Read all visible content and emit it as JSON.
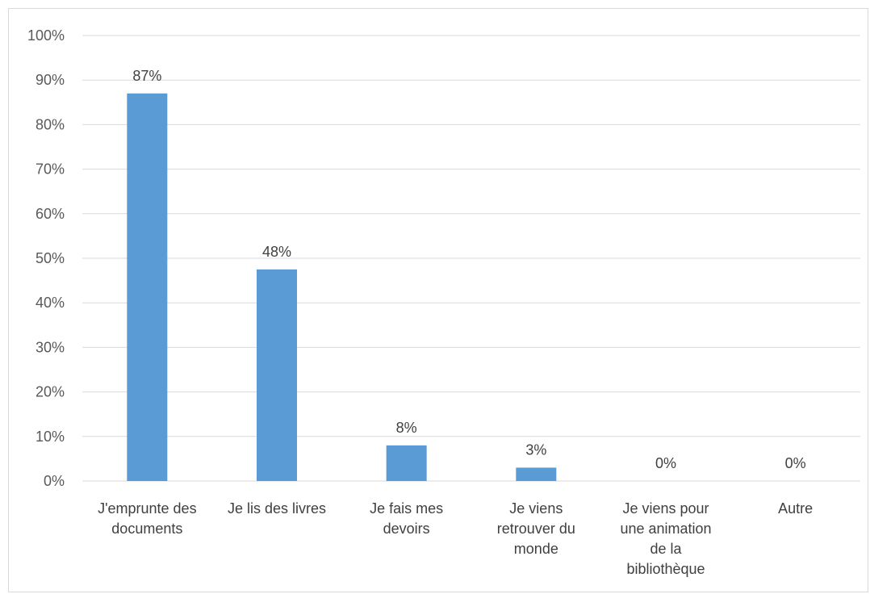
{
  "chart_data": {
    "type": "bar",
    "categories": [
      [
        "J'emprunte des",
        "documents"
      ],
      [
        "Je lis des livres"
      ],
      [
        "Je fais mes",
        "devoirs"
      ],
      [
        "Je viens",
        "retrouver du",
        "monde"
      ],
      [
        "Je viens pour",
        "une animation",
        "de la",
        "bibliothèque"
      ],
      [
        "Autre"
      ]
    ],
    "values": [
      87,
      47.5,
      8,
      3,
      0,
      0
    ],
    "data_labels": [
      "87%",
      "48%",
      "8%",
      "3%",
      "0%",
      "0%"
    ],
    "y_ticks": [
      "0%",
      "10%",
      "20%",
      "30%",
      "40%",
      "50%",
      "60%",
      "70%",
      "80%",
      "90%",
      "100%"
    ],
    "ylim": [
      0,
      100
    ],
    "grid": true,
    "bar_color": "#5b9bd5",
    "grid_color": "#d9d9d9"
  }
}
